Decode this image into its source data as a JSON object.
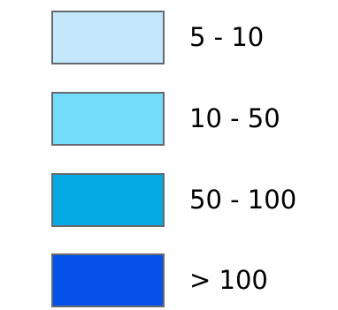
{
  "legend": {
    "items": [
      {
        "label": "5 - 10",
        "color": "#c3e7fb"
      },
      {
        "label": "10 - 50",
        "color": "#72ddfa"
      },
      {
        "label": "50 - 100",
        "color": "#05a9e4"
      },
      {
        "label": "> 100",
        "color": "#0551ea"
      }
    ]
  }
}
